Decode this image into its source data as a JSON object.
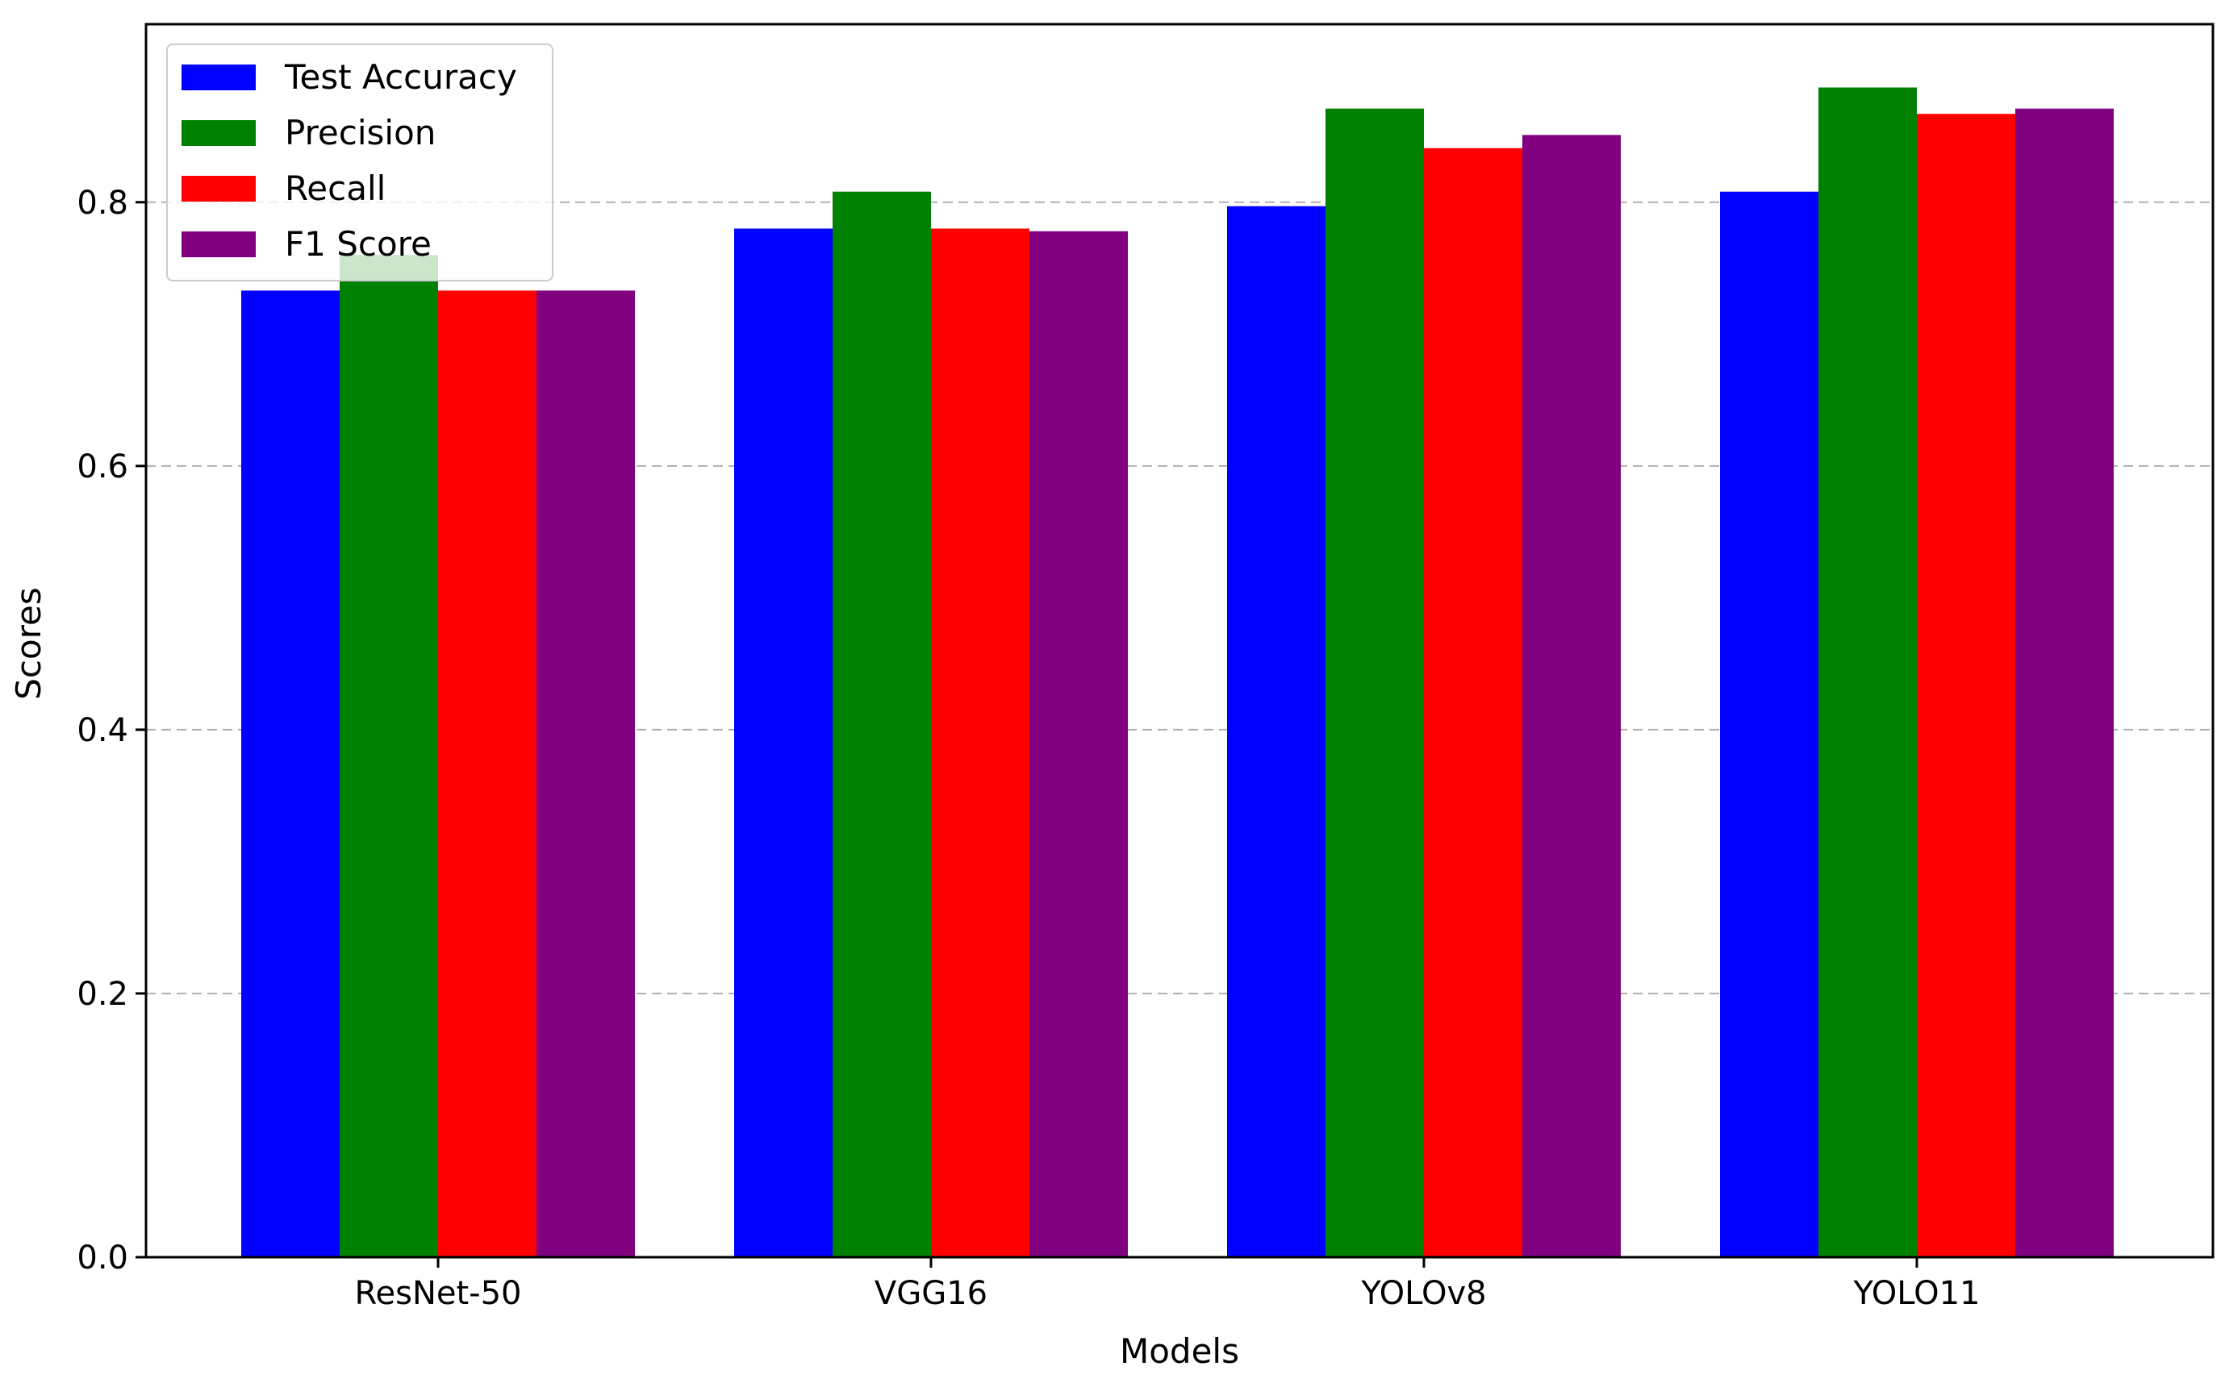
{
  "chart_data": {
    "type": "bar",
    "title": "",
    "xlabel": "Models",
    "ylabel": "Scores",
    "categories": [
      "ResNet-50",
      "VGG16",
      "YOLOv8",
      "YOLO11"
    ],
    "series": [
      {
        "name": "Test Accuracy",
        "color": "#0000ff",
        "values": [
          0.733,
          0.78,
          0.797,
          0.808
        ]
      },
      {
        "name": "Precision",
        "color": "#008000",
        "values": [
          0.76,
          0.808,
          0.871,
          0.887
        ]
      },
      {
        "name": "Recall",
        "color": "#ff0000",
        "values": [
          0.733,
          0.78,
          0.841,
          0.867
        ]
      },
      {
        "name": "F1 Score",
        "color": "#800080",
        "values": [
          0.733,
          0.778,
          0.851,
          0.871
        ]
      }
    ],
    "ylim": [
      0,
      0.935
    ],
    "yticks": [
      0.0,
      0.2,
      0.4,
      0.6,
      0.8
    ],
    "ytick_labels": [
      "0.0",
      "0.2",
      "0.4",
      "0.6",
      "0.8"
    ],
    "grid": "y-dashed",
    "legend_position": "top-left"
  }
}
